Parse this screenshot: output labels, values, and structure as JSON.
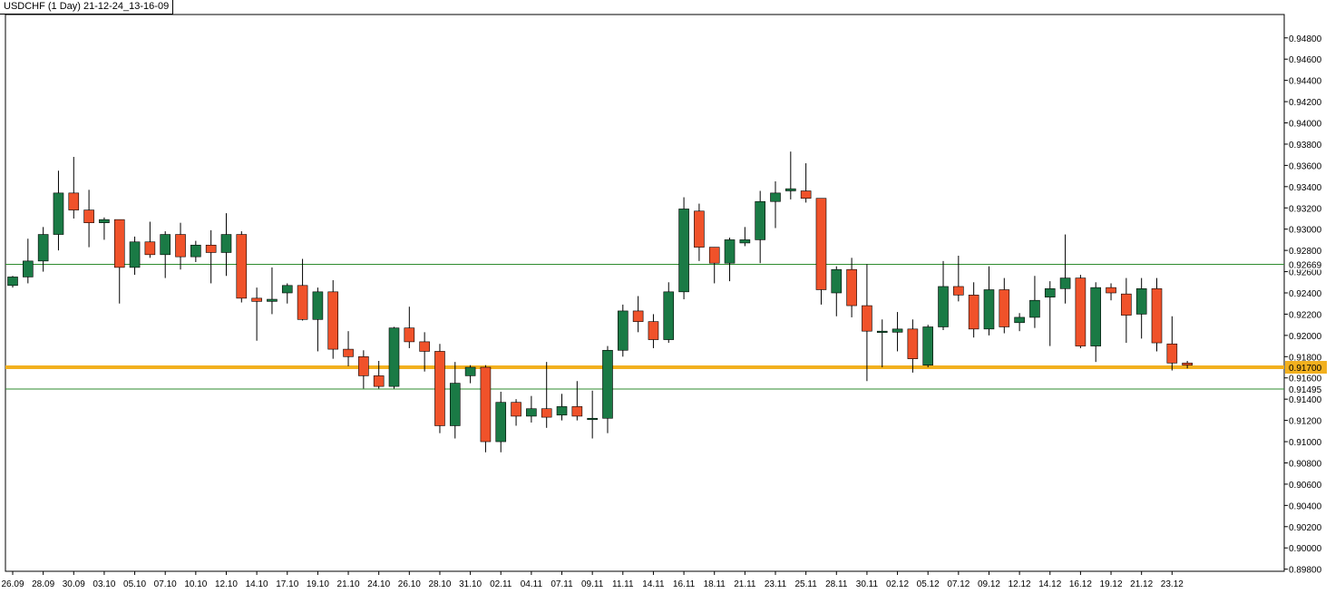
{
  "chart_data": {
    "type": "candlestick",
    "title": "USDCHF (1 Day) 21-12-24_13-16-09",
    "colors": {
      "bull": "#1a7a45",
      "bear": "#f0522a",
      "wick": "#000000",
      "support_resistance": "#2e8b2e",
      "current_price_line": "#f2b01e",
      "current_price_label_bg": "#f2b01e"
    },
    "ylim": [
      0.8978,
      0.9502
    ],
    "y_ticks": [
      "0.94800",
      "0.94600",
      "0.94400",
      "0.94200",
      "0.94000",
      "0.93800",
      "0.93600",
      "0.93400",
      "0.93200",
      "0.93000",
      "0.92800",
      "0.92600",
      "0.92400",
      "0.92200",
      "0.92000",
      "0.91800",
      "0.91600",
      "0.91400",
      "0.91200",
      "0.91000",
      "0.90800",
      "0.90600",
      "0.90400",
      "0.90200",
      "0.90000",
      "0.89800"
    ],
    "x_ticks": [
      "26.09",
      "28.09",
      "30.09",
      "03.10",
      "05.10",
      "07.10",
      "10.10",
      "12.10",
      "14.10",
      "17.10",
      "19.10",
      "21.10",
      "24.10",
      "26.10",
      "28.10",
      "31.10",
      "02.11",
      "04.11",
      "07.11",
      "09.11",
      "11.11",
      "14.11",
      "16.11",
      "18.11",
      "21.11",
      "23.11",
      "25.11",
      "28.11",
      "30.11",
      "02.12",
      "05.12",
      "07.12",
      "09.12",
      "12.12",
      "14.12",
      "16.12",
      "19.12",
      "21.12",
      "23.12"
    ],
    "horizontal_lines": [
      {
        "label": "0.92669",
        "value": 0.92669,
        "kind": "resistance"
      },
      {
        "label": "0.91495",
        "value": 0.91495,
        "kind": "support"
      }
    ],
    "current_price": {
      "label": "0.91700",
      "value": 0.917
    },
    "candles": [
      {
        "o": 0.9247,
        "h": 0.9256,
        "l": 0.9245,
        "c": 0.9255
      },
      {
        "o": 0.9255,
        "h": 0.9291,
        "l": 0.9249,
        "c": 0.927
      },
      {
        "o": 0.927,
        "h": 0.9302,
        "l": 0.926,
        "c": 0.9295
      },
      {
        "o": 0.9295,
        "h": 0.9355,
        "l": 0.928,
        "c": 0.9334
      },
      {
        "o": 0.9334,
        "h": 0.9368,
        "l": 0.931,
        "c": 0.9318
      },
      {
        "o": 0.9318,
        "h": 0.9337,
        "l": 0.9283,
        "c": 0.9306
      },
      {
        "o": 0.9306,
        "h": 0.9311,
        "l": 0.929,
        "c": 0.9309
      },
      {
        "o": 0.9309,
        "h": 0.9309,
        "l": 0.923,
        "c": 0.9264
      },
      {
        "o": 0.9264,
        "h": 0.9293,
        "l": 0.9257,
        "c": 0.9288
      },
      {
        "o": 0.9288,
        "h": 0.9307,
        "l": 0.9273,
        "c": 0.9276
      },
      {
        "o": 0.9276,
        "h": 0.9298,
        "l": 0.9254,
        "c": 0.9295
      },
      {
        "o": 0.9295,
        "h": 0.9306,
        "l": 0.9262,
        "c": 0.9274
      },
      {
        "o": 0.9274,
        "h": 0.9289,
        "l": 0.9269,
        "c": 0.9285
      },
      {
        "o": 0.9285,
        "h": 0.9299,
        "l": 0.9249,
        "c": 0.9278
      },
      {
        "o": 0.9278,
        "h": 0.9315,
        "l": 0.9256,
        "c": 0.9295
      },
      {
        "o": 0.9295,
        "h": 0.9298,
        "l": 0.9231,
        "c": 0.9235
      },
      {
        "o": 0.9235,
        "h": 0.9245,
        "l": 0.9195,
        "c": 0.9232
      },
      {
        "o": 0.9232,
        "h": 0.9264,
        "l": 0.922,
        "c": 0.9234
      },
      {
        "o": 0.924,
        "h": 0.9249,
        "l": 0.923,
        "c": 0.9247
      },
      {
        "o": 0.9247,
        "h": 0.9272,
        "l": 0.9214,
        "c": 0.9215
      },
      {
        "o": 0.9215,
        "h": 0.9245,
        "l": 0.9185,
        "c": 0.9241
      },
      {
        "o": 0.9241,
        "h": 0.9252,
        "l": 0.9178,
        "c": 0.9187
      },
      {
        "o": 0.9187,
        "h": 0.9204,
        "l": 0.9171,
        "c": 0.918
      },
      {
        "o": 0.918,
        "h": 0.9186,
        "l": 0.915,
        "c": 0.9162
      },
      {
        "o": 0.9162,
        "h": 0.9176,
        "l": 0.915,
        "c": 0.9152
      },
      {
        "o": 0.9152,
        "h": 0.9208,
        "l": 0.915,
        "c": 0.9207
      },
      {
        "o": 0.9207,
        "h": 0.9227,
        "l": 0.9188,
        "c": 0.9194
      },
      {
        "o": 0.9194,
        "h": 0.9203,
        "l": 0.9166,
        "c": 0.9185
      },
      {
        "o": 0.9185,
        "h": 0.9192,
        "l": 0.9108,
        "c": 0.9115
      },
      {
        "o": 0.9115,
        "h": 0.9175,
        "l": 0.9103,
        "c": 0.9155
      },
      {
        "o": 0.9162,
        "h": 0.9172,
        "l": 0.9155,
        "c": 0.917
      },
      {
        "o": 0.917,
        "h": 0.9172,
        "l": 0.909,
        "c": 0.91
      },
      {
        "o": 0.91,
        "h": 0.9147,
        "l": 0.909,
        "c": 0.9137
      },
      {
        "o": 0.9137,
        "h": 0.914,
        "l": 0.9115,
        "c": 0.9124
      },
      {
        "o": 0.9124,
        "h": 0.9143,
        "l": 0.9118,
        "c": 0.9131
      },
      {
        "o": 0.9131,
        "h": 0.9175,
        "l": 0.9113,
        "c": 0.9123
      },
      {
        "o": 0.9125,
        "h": 0.9145,
        "l": 0.912,
        "c": 0.9133
      },
      {
        "o": 0.9133,
        "h": 0.9157,
        "l": 0.912,
        "c": 0.9124
      },
      {
        "o": 0.9122,
        "h": 0.9148,
        "l": 0.9103,
        "c": 0.9122
      },
      {
        "o": 0.9122,
        "h": 0.919,
        "l": 0.9108,
        "c": 0.9186
      },
      {
        "o": 0.9186,
        "h": 0.9229,
        "l": 0.918,
        "c": 0.9223
      },
      {
        "o": 0.9223,
        "h": 0.9237,
        "l": 0.9203,
        "c": 0.9213
      },
      {
        "o": 0.9213,
        "h": 0.922,
        "l": 0.9188,
        "c": 0.9196
      },
      {
        "o": 0.9196,
        "h": 0.925,
        "l": 0.9193,
        "c": 0.9241
      },
      {
        "o": 0.9241,
        "h": 0.933,
        "l": 0.9234,
        "c": 0.9319
      },
      {
        "o": 0.9317,
        "h": 0.9324,
        "l": 0.927,
        "c": 0.9283
      },
      {
        "o": 0.9283,
        "h": 0.9283,
        "l": 0.9249,
        "c": 0.9268
      },
      {
        "o": 0.9268,
        "h": 0.9292,
        "l": 0.9251,
        "c": 0.929
      },
      {
        "o": 0.9287,
        "h": 0.9302,
        "l": 0.9284,
        "c": 0.929
      },
      {
        "o": 0.929,
        "h": 0.9336,
        "l": 0.9268,
        "c": 0.9326
      },
      {
        "o": 0.9326,
        "h": 0.9345,
        "l": 0.9301,
        "c": 0.9334
      },
      {
        "o": 0.9336,
        "h": 0.9373,
        "l": 0.9328,
        "c": 0.9338
      },
      {
        "o": 0.9336,
        "h": 0.9362,
        "l": 0.9325,
        "c": 0.9329
      },
      {
        "o": 0.9329,
        "h": 0.9329,
        "l": 0.9229,
        "c": 0.9243
      },
      {
        "o": 0.924,
        "h": 0.9265,
        "l": 0.9218,
        "c": 0.9262
      },
      {
        "o": 0.9262,
        "h": 0.9273,
        "l": 0.9217,
        "c": 0.9228
      },
      {
        "o": 0.9228,
        "h": 0.9267,
        "l": 0.9157,
        "c": 0.9204
      },
      {
        "o": 0.9204,
        "h": 0.9215,
        "l": 0.917,
        "c": 0.9204
      },
      {
        "o": 0.9203,
        "h": 0.9222,
        "l": 0.9185,
        "c": 0.9206
      },
      {
        "o": 0.9206,
        "h": 0.9215,
        "l": 0.9165,
        "c": 0.9178
      },
      {
        "o": 0.9172,
        "h": 0.921,
        "l": 0.917,
        "c": 0.9208
      },
      {
        "o": 0.9208,
        "h": 0.927,
        "l": 0.9205,
        "c": 0.9246
      },
      {
        "o": 0.9246,
        "h": 0.9275,
        "l": 0.9232,
        "c": 0.9238
      },
      {
        "o": 0.9238,
        "h": 0.925,
        "l": 0.9198,
        "c": 0.9206
      },
      {
        "o": 0.9206,
        "h": 0.9265,
        "l": 0.92,
        "c": 0.9243
      },
      {
        "o": 0.9243,
        "h": 0.9254,
        "l": 0.9202,
        "c": 0.9208
      },
      {
        "o": 0.9212,
        "h": 0.9221,
        "l": 0.9204,
        "c": 0.9217
      },
      {
        "o": 0.9217,
        "h": 0.9256,
        "l": 0.9207,
        "c": 0.9233
      },
      {
        "o": 0.9236,
        "h": 0.9251,
        "l": 0.919,
        "c": 0.9244
      },
      {
        "o": 0.9244,
        "h": 0.9295,
        "l": 0.923,
        "c": 0.9254
      },
      {
        "o": 0.9254,
        "h": 0.9257,
        "l": 0.9188,
        "c": 0.919
      },
      {
        "o": 0.919,
        "h": 0.925,
        "l": 0.9175,
        "c": 0.9245
      },
      {
        "o": 0.9245,
        "h": 0.9249,
        "l": 0.9233,
        "c": 0.924
      },
      {
        "o": 0.9239,
        "h": 0.9254,
        "l": 0.9193,
        "c": 0.9219
      },
      {
        "o": 0.922,
        "h": 0.9254,
        "l": 0.9197,
        "c": 0.9244
      },
      {
        "o": 0.9244,
        "h": 0.9254,
        "l": 0.9185,
        "c": 0.9193
      },
      {
        "o": 0.9192,
        "h": 0.9218,
        "l": 0.9167,
        "c": 0.9174
      },
      {
        "o": 0.9174,
        "h": 0.9176,
        "l": 0.9169,
        "c": 0.9172
      }
    ]
  }
}
